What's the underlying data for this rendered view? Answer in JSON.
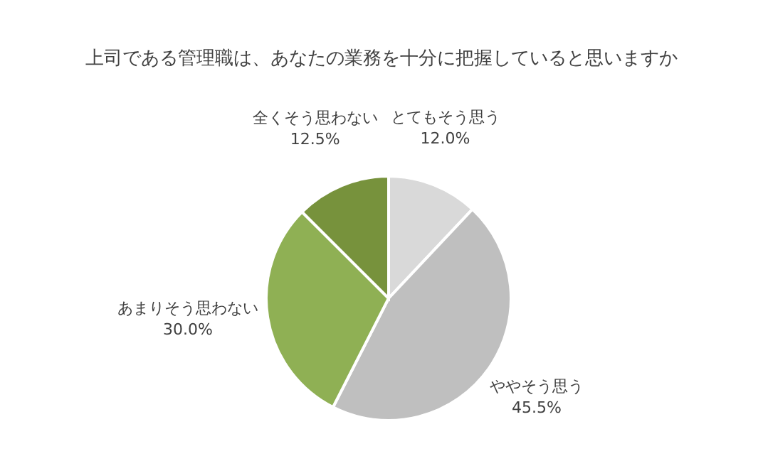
{
  "chart_data": {
    "type": "pie",
    "title": "上司である管理職は、あなたの業務を十分に把握していると思いますか",
    "categories": [
      "とてもそう思う",
      "ややそう思う",
      "あまりそう思わない",
      "全くそう思わない"
    ],
    "values": [
      12.0,
      45.5,
      30.0,
      12.5
    ],
    "value_labels": [
      "12.0%",
      "45.5%",
      "30.0%",
      "12.5%"
    ],
    "colors": [
      "#d9d9d9",
      "#bfbfbf",
      "#8fb054",
      "#77923c"
    ],
    "legend": false
  }
}
